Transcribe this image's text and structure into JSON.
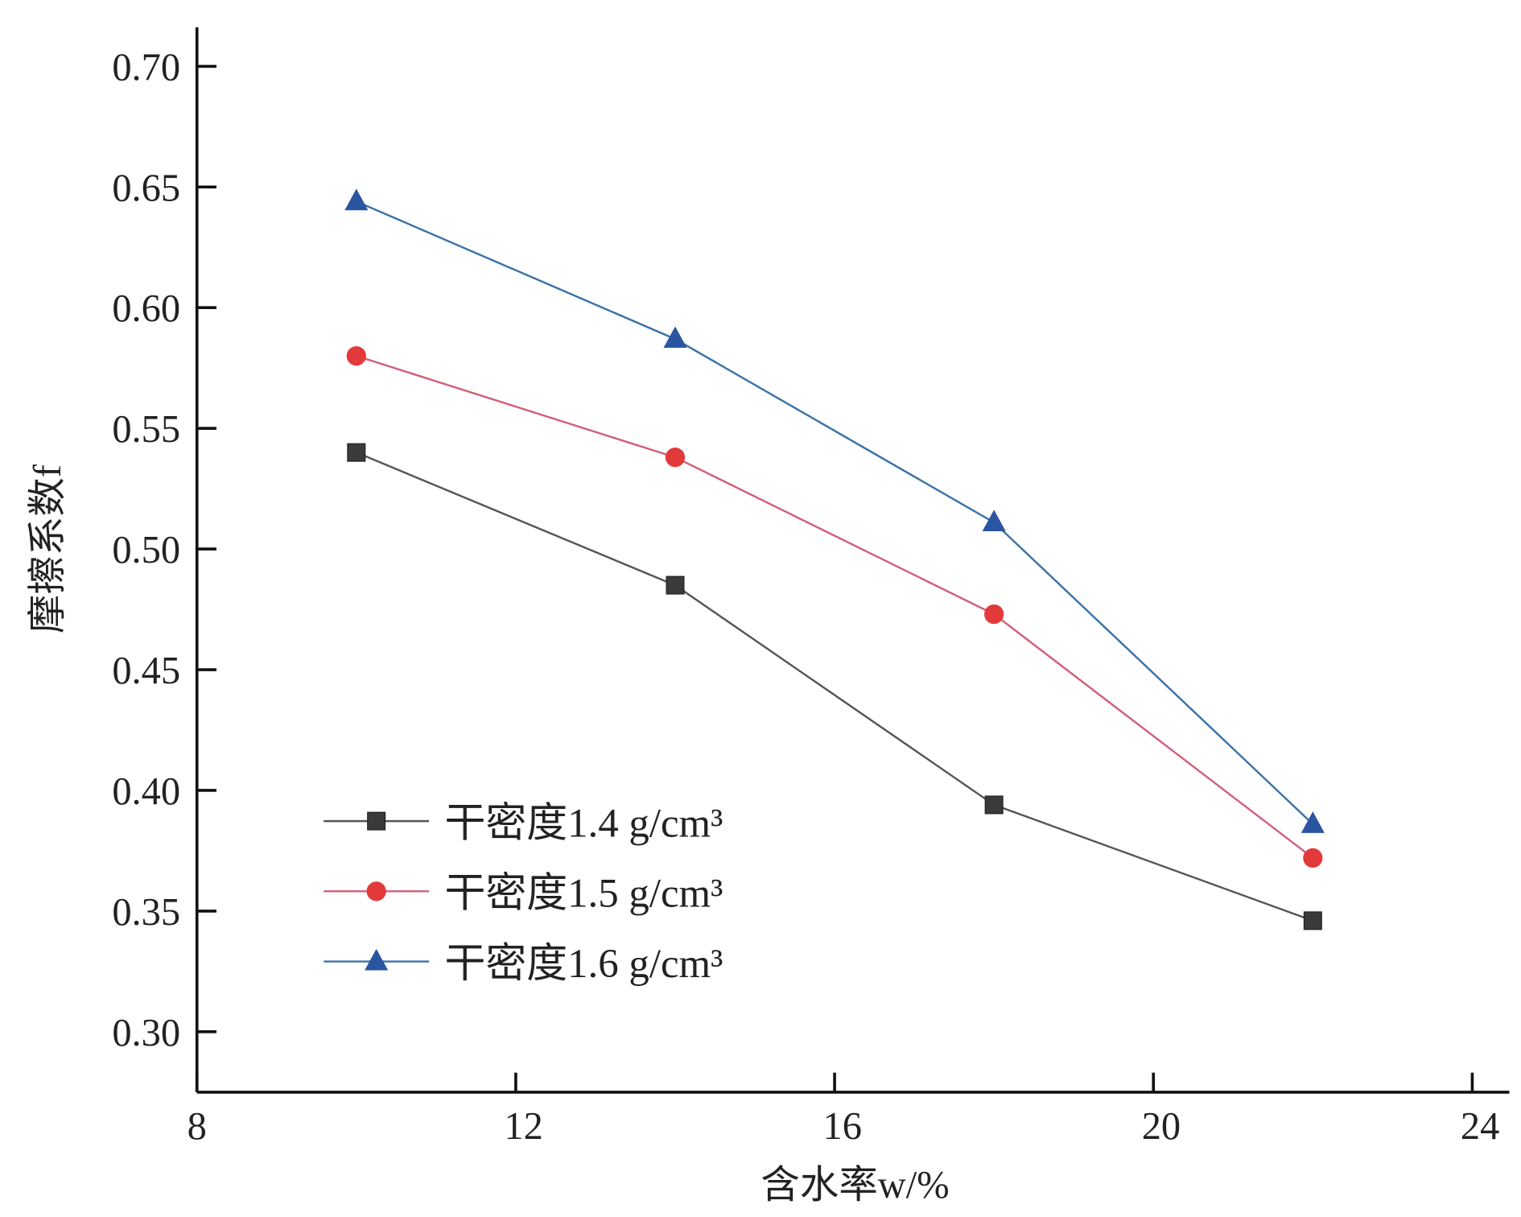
{
  "chart_data": {
    "type": "line",
    "title": "",
    "xlabel": "含水率w/%",
    "ylabel": "摩擦系数f",
    "xlim": [
      8,
      24
    ],
    "ylim": [
      0.3,
      0.7
    ],
    "xticks": [
      "8",
      "12",
      "16",
      "20",
      "24"
    ],
    "xtick_values": [
      8,
      12,
      16,
      20,
      24
    ],
    "yticks": [
      "0.30",
      "0.35",
      "0.40",
      "0.45",
      "0.50",
      "0.55",
      "0.60",
      "0.65",
      "0.70"
    ],
    "ytick_values": [
      0.3,
      0.35,
      0.4,
      0.45,
      0.5,
      0.55,
      0.6,
      0.65,
      0.7
    ],
    "grid": false,
    "legend_position": "bottom-left",
    "x": [
      10,
      14,
      18,
      22
    ],
    "series": [
      {
        "name": "干密度1.4 g/cm³",
        "values": [
          0.54,
          0.485,
          0.394,
          0.346
        ],
        "marker": "square",
        "color": "#3a3a3a",
        "line_color": "#555555"
      },
      {
        "name": "干密度1.5 g/cm³",
        "values": [
          0.58,
          0.538,
          0.473,
          0.372
        ],
        "marker": "circle",
        "color": "#e23a3a",
        "line_color": "#d0607a"
      },
      {
        "name": "干密度1.6 g/cm³",
        "values": [
          0.644,
          0.587,
          0.511,
          0.386
        ],
        "marker": "triangle",
        "color": "#2a55a0",
        "line_color": "#3a72a8"
      }
    ]
  }
}
